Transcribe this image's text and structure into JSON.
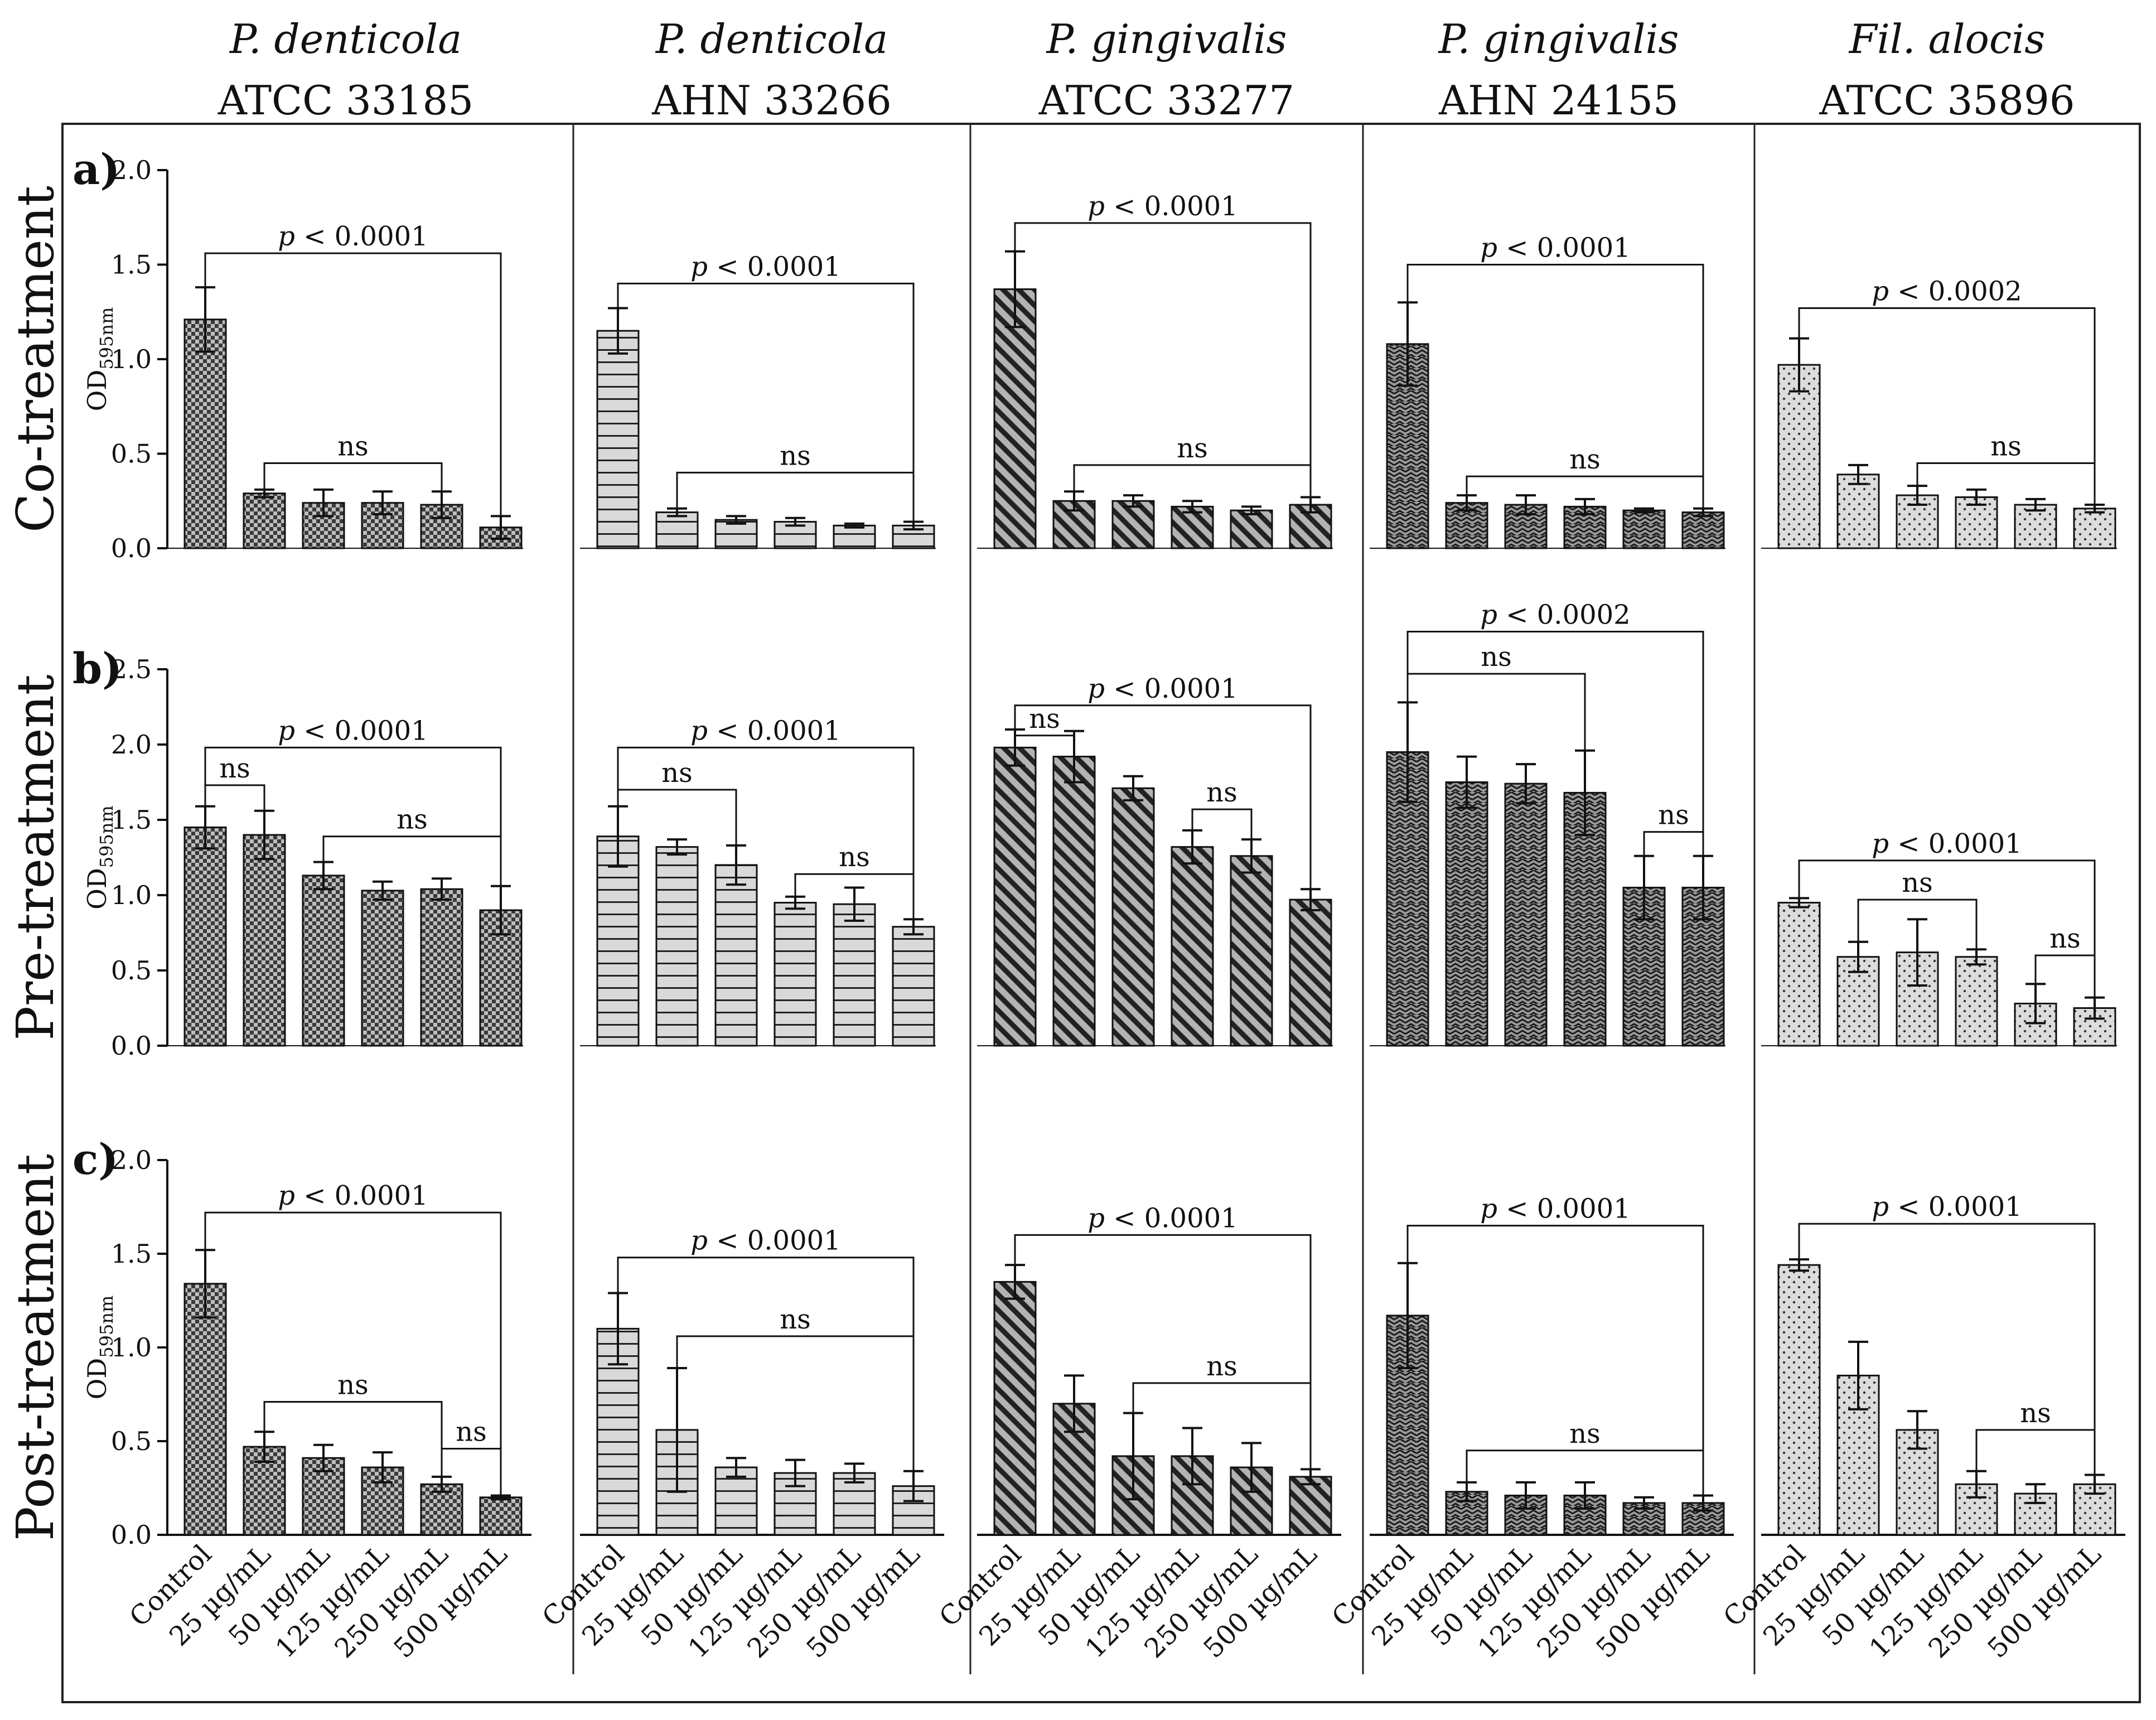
{
  "chart_data": {
    "type": "bar",
    "title": "",
    "categories": [
      "Control",
      "25 µg/mL",
      "50 µg/mL",
      "125 µg/mL",
      "250 µg/mL",
      "500 µg/mL"
    ],
    "ylabel": "OD",
    "ylabel_sub": "595nm",
    "columns": [
      {
        "species": "P. denticola",
        "strain": "ATCC 33185",
        "pattern": "pat-check"
      },
      {
        "species": "P. denticola",
        "strain": "AHN 33266",
        "pattern": "pat-hlines"
      },
      {
        "species": "P. gingivalis",
        "strain": "ATCC 33277",
        "pattern": "pat-diag"
      },
      {
        "species": "P. gingivalis",
        "strain": "AHN 24155",
        "pattern": "pat-zigzag"
      },
      {
        "species": "Fil. alocis",
        "strain": "ATCC 35896",
        "pattern": "pat-dots"
      }
    ],
    "rows": [
      {
        "letter": "a)",
        "label": "Co-treatment",
        "ylim": [
          0,
          2.0
        ],
        "yticks": [
          "0.0",
          "0.5",
          "1.0",
          "1.5",
          "2.0"
        ],
        "panels": [
          {
            "values": [
              1.21,
              0.29,
              0.24,
              0.24,
              0.23,
              0.11
            ],
            "errors": [
              0.17,
              0.02,
              0.07,
              0.06,
              0.07,
              0.06
            ],
            "brackets": [
              {
                "from": 0,
                "to": 5,
                "level": 1.56,
                "label": "p < 0.0001"
              },
              {
                "from": 1,
                "to": 4,
                "level": 0.45,
                "label": "ns"
              }
            ]
          },
          {
            "values": [
              1.15,
              0.19,
              0.15,
              0.14,
              0.12,
              0.12
            ],
            "errors": [
              0.12,
              0.02,
              0.02,
              0.02,
              0.01,
              0.02
            ],
            "brackets": [
              {
                "from": 0,
                "to": 5,
                "level": 1.4,
                "label": "p < 0.0001"
              },
              {
                "from": 1,
                "to": 5,
                "level": 0.4,
                "label": "ns"
              }
            ]
          },
          {
            "values": [
              1.37,
              0.25,
              0.25,
              0.22,
              0.2,
              0.23
            ],
            "errors": [
              0.2,
              0.05,
              0.03,
              0.03,
              0.02,
              0.04
            ],
            "brackets": [
              {
                "from": 0,
                "to": 5,
                "level": 1.72,
                "label": "p < 0.0001"
              },
              {
                "from": 1,
                "to": 5,
                "level": 0.44,
                "label": "ns"
              }
            ]
          },
          {
            "values": [
              1.08,
              0.24,
              0.23,
              0.22,
              0.2,
              0.19
            ],
            "errors": [
              0.22,
              0.04,
              0.05,
              0.04,
              0.01,
              0.02
            ],
            "brackets": [
              {
                "from": 0,
                "to": 5,
                "level": 1.5,
                "label": "p < 0.0001"
              },
              {
                "from": 1,
                "to": 5,
                "level": 0.38,
                "label": "ns"
              }
            ]
          },
          {
            "values": [
              0.97,
              0.39,
              0.28,
              0.27,
              0.23,
              0.21
            ],
            "errors": [
              0.14,
              0.05,
              0.05,
              0.04,
              0.03,
              0.02
            ],
            "brackets": [
              {
                "from": 0,
                "to": 5,
                "level": 1.27,
                "label": "p < 0.0002"
              },
              {
                "from": 2,
                "to": 5,
                "level": 0.45,
                "label": "ns"
              }
            ]
          }
        ]
      },
      {
        "letter": "b)",
        "label": "Pre-treatment",
        "ylim": [
          0,
          2.5
        ],
        "yticks": [
          "0.0",
          "0.5",
          "1.0",
          "1.5",
          "2.0",
          "2.5"
        ],
        "panels": [
          {
            "values": [
              1.45,
              1.4,
              1.13,
              1.03,
              1.04,
              0.9
            ],
            "errors": [
              0.14,
              0.16,
              0.09,
              0.06,
              0.07,
              0.16
            ],
            "brackets": [
              {
                "from": 0,
                "to": 5,
                "level": 1.98,
                "label": "p < 0.0001"
              },
              {
                "from": 0,
                "to": 1,
                "level": 1.73,
                "label": "ns"
              },
              {
                "from": 2,
                "to": 5,
                "level": 1.39,
                "label": "ns"
              }
            ]
          },
          {
            "values": [
              1.39,
              1.32,
              1.2,
              0.95,
              0.94,
              0.79
            ],
            "errors": [
              0.2,
              0.05,
              0.13,
              0.04,
              0.11,
              0.05
            ],
            "brackets": [
              {
                "from": 0,
                "to": 5,
                "level": 1.98,
                "label": "p < 0.0001"
              },
              {
                "from": 0,
                "to": 2,
                "level": 1.7,
                "label": "ns"
              },
              {
                "from": 3,
                "to": 5,
                "level": 1.14,
                "label": "ns"
              }
            ]
          },
          {
            "values": [
              1.98,
              1.92,
              1.71,
              1.32,
              1.26,
              0.97
            ],
            "errors": [
              0.12,
              0.17,
              0.08,
              0.11,
              0.11,
              0.07
            ],
            "brackets": [
              {
                "from": 0,
                "to": 5,
                "level": 2.26,
                "label": "p < 0.0001"
              },
              {
                "from": 0,
                "to": 1,
                "level": 2.06,
                "label": "ns"
              },
              {
                "from": 3,
                "to": 4,
                "level": 1.57,
                "label": "ns"
              }
            ]
          },
          {
            "values": [
              1.95,
              1.75,
              1.74,
              1.68,
              1.05,
              1.05
            ],
            "errors": [
              0.33,
              0.17,
              0.13,
              0.28,
              0.21,
              0.21
            ],
            "brackets": [
              {
                "from": 0,
                "to": 5,
                "level": 2.75,
                "label": "p < 0.0002"
              },
              {
                "from": 0,
                "to": 3,
                "level": 2.47,
                "label": "ns"
              },
              {
                "from": 4,
                "to": 5,
                "level": 1.42,
                "label": "ns"
              }
            ]
          },
          {
            "values": [
              0.95,
              0.59,
              0.62,
              0.59,
              0.28,
              0.25
            ],
            "errors": [
              0.03,
              0.1,
              0.22,
              0.05,
              0.13,
              0.07
            ],
            "brackets": [
              {
                "from": 0,
                "to": 5,
                "level": 1.23,
                "label": "p < 0.0001"
              },
              {
                "from": 1,
                "to": 3,
                "level": 0.97,
                "label": "ns"
              },
              {
                "from": 4,
                "to": 5,
                "level": 0.6,
                "label": "ns"
              }
            ]
          }
        ]
      },
      {
        "letter": "c)",
        "label": "Post-treatment",
        "ylim": [
          0,
          2.0
        ],
        "yticks": [
          "0.0",
          "0.5",
          "1.0",
          "1.5",
          "2.0"
        ],
        "panels": [
          {
            "values": [
              1.34,
              0.47,
              0.41,
              0.36,
              0.27,
              0.2
            ],
            "errors": [
              0.18,
              0.08,
              0.07,
              0.08,
              0.04,
              0.01
            ],
            "brackets": [
              {
                "from": 0,
                "to": 5,
                "level": 1.72,
                "label": "p < 0.0001"
              },
              {
                "from": 1,
                "to": 4,
                "level": 0.71,
                "label": "ns"
              },
              {
                "from": 4,
                "to": 5,
                "level": 0.46,
                "label": "ns"
              }
            ]
          },
          {
            "values": [
              1.1,
              0.56,
              0.36,
              0.33,
              0.33,
              0.26
            ],
            "errors": [
              0.19,
              0.33,
              0.05,
              0.07,
              0.05,
              0.08
            ],
            "brackets": [
              {
                "from": 0,
                "to": 5,
                "level": 1.48,
                "label": "p < 0.0001"
              },
              {
                "from": 1,
                "to": 5,
                "level": 1.06,
                "label": "ns"
              }
            ]
          },
          {
            "values": [
              1.35,
              0.7,
              0.42,
              0.42,
              0.36,
              0.31
            ],
            "errors": [
              0.09,
              0.15,
              0.23,
              0.15,
              0.13,
              0.04
            ],
            "brackets": [
              {
                "from": 0,
                "to": 5,
                "level": 1.6,
                "label": "p < 0.0001"
              },
              {
                "from": 2,
                "to": 5,
                "level": 0.81,
                "label": "ns"
              }
            ]
          },
          {
            "values": [
              1.17,
              0.23,
              0.21,
              0.21,
              0.17,
              0.17
            ],
            "errors": [
              0.28,
              0.05,
              0.07,
              0.07,
              0.03,
              0.04
            ],
            "brackets": [
              {
                "from": 0,
                "to": 5,
                "level": 1.65,
                "label": "p < 0.0001"
              },
              {
                "from": 1,
                "to": 5,
                "level": 0.45,
                "label": "ns"
              }
            ]
          },
          {
            "values": [
              1.44,
              0.85,
              0.56,
              0.27,
              0.22,
              0.27
            ],
            "errors": [
              0.03,
              0.18,
              0.1,
              0.07,
              0.05,
              0.05
            ],
            "brackets": [
              {
                "from": 0,
                "to": 5,
                "level": 1.66,
                "label": "p < 0.0001"
              },
              {
                "from": 3,
                "to": 5,
                "level": 0.56,
                "label": "ns"
              }
            ]
          }
        ]
      }
    ]
  }
}
